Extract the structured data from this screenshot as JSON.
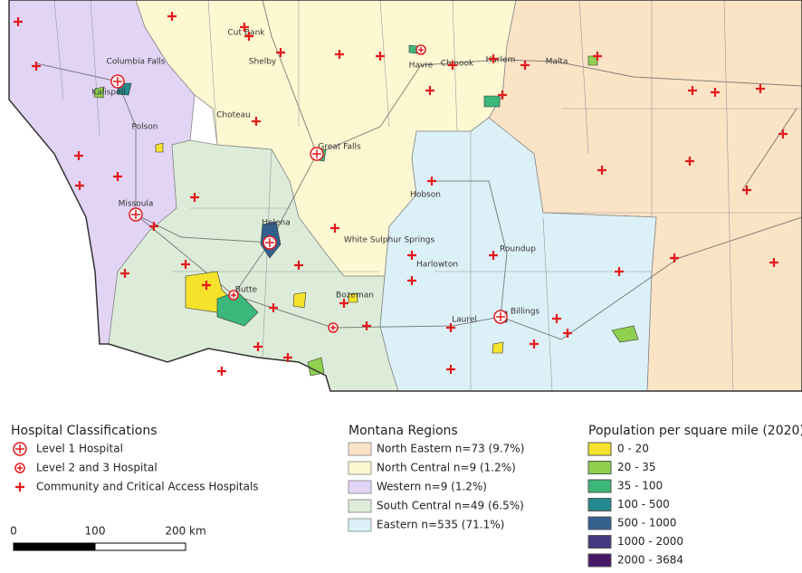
{
  "map": {
    "cities": [
      "Cut Bank",
      "Havre",
      "Chinook",
      "Columbia Falls",
      "Shelby",
      "Harlem",
      "Malta",
      "Kalispell",
      "Polson",
      "Choteau",
      "Great Falls",
      "Hobson",
      "Missoula",
      "Helena",
      "White Sulphur Springs",
      "Roundup",
      "Harlowton",
      "Butte",
      "Billings",
      "Laurel",
      "Bozeman"
    ]
  },
  "legends": {
    "hospitals": {
      "title": "Hospital Classifications",
      "items": [
        "Level 1 Hospital",
        "Level 2 and 3 Hospital",
        "Community and Critical Access Hospitals"
      ]
    },
    "regions": {
      "title": "Montana Regions",
      "items": [
        {
          "label": "North Eastern n=73 (9.7%)",
          "color": "#fbe3c6"
        },
        {
          "label": "North Central n=9 (1.2%)",
          "color": "#fdf8d2"
        },
        {
          "label": "Western n=9 (1.2%)",
          "color": "#e2d4f5"
        },
        {
          "label": "South Central n=49 (6.5%)",
          "color": "#dcecd8"
        },
        {
          "label": "Eastern n=535 (71.1%)",
          "color": "#dcf0f7"
        }
      ]
    },
    "population": {
      "title": "Population per square mile (2020)",
      "items": [
        {
          "label": "0 - 20",
          "color": "#f5e32b"
        },
        {
          "label": "20 - 35",
          "color": "#8fd14f"
        },
        {
          "label": "35 - 100",
          "color": "#3bb87a"
        },
        {
          "label": "100 - 500",
          "color": "#23898d"
        },
        {
          "label": "500 - 1000",
          "color": "#33608d"
        },
        {
          "label": "1000 - 2000",
          "color": "#453781"
        },
        {
          "label": "2000 - 3684",
          "color": "#481768"
        }
      ]
    }
  },
  "scale_bar": {
    "labels": [
      "0",
      "100",
      "200 km"
    ]
  }
}
